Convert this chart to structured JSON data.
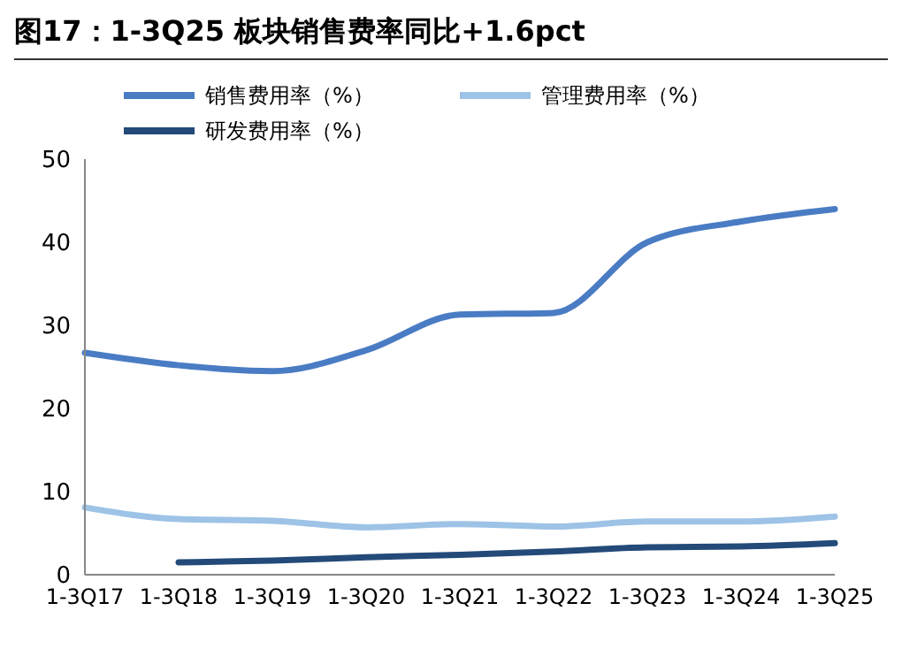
{
  "chart_data": {
    "type": "line",
    "title": "图17：1-3Q25 板块销售费率同比+1.6pct",
    "categories": [
      "1-3Q17",
      "1-3Q18",
      "1-3Q19",
      "1-3Q20",
      "1-3Q21",
      "1-3Q22",
      "1-3Q23",
      "1-3Q24",
      "1-3Q25"
    ],
    "series": [
      {
        "name": "销售费用率（%）",
        "color": "#4a7cc4",
        "values": [
          26.7,
          25.2,
          24.5,
          27,
          31.3,
          31.5,
          40,
          42.5,
          44
        ]
      },
      {
        "name": "管理费用率（%）",
        "color": "#9dc3e6",
        "values": [
          8.1,
          6.7,
          6.5,
          5.7,
          6.1,
          5.8,
          6.4,
          6.4,
          7.0
        ]
      },
      {
        "name": "研发费用率（%）",
        "color": "#234a78",
        "values": [
          null,
          1.5,
          1.7,
          2.1,
          2.4,
          2.8,
          3.3,
          3.4,
          3.8
        ]
      }
    ],
    "ylim": [
      0,
      50
    ],
    "yticks": [
      0,
      10,
      20,
      30,
      40,
      50
    ],
    "legend": "top",
    "marker": "none",
    "line_style": "solid"
  }
}
